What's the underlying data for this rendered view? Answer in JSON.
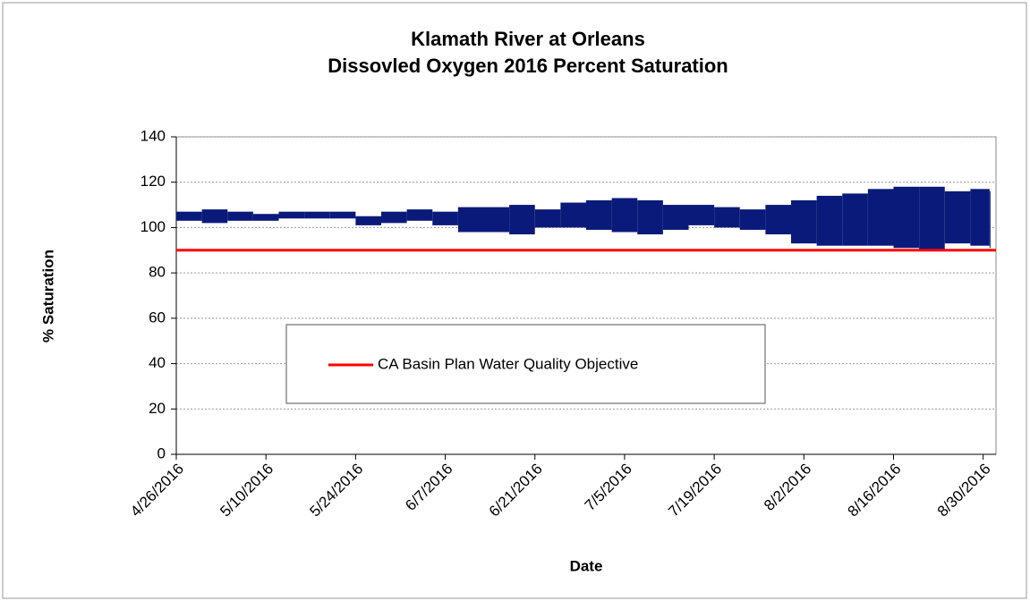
{
  "chart_data": {
    "type": "range",
    "title": [
      "Klamath River at Orleans",
      "Dissovled Oxygen   2016 Percent Saturation"
    ],
    "y_label": "% Saturation",
    "x_label": "Date",
    "x": [
      "4/26/2016",
      "4/30/2016",
      "5/4/2016",
      "5/8/2016",
      "5/12/2016",
      "5/16/2016",
      "5/20/2016",
      "5/24/2016",
      "5/28/2016",
      "6/1/2016",
      "6/5/2016",
      "6/9/2016",
      "6/13/2016",
      "6/17/2016",
      "6/21/2016",
      "6/25/2016",
      "6/29/2016",
      "7/3/2016",
      "7/7/2016",
      "7/11/2016",
      "7/15/2016",
      "7/19/2016",
      "7/23/2016",
      "7/27/2016",
      "7/31/2016",
      "8/4/2016",
      "8/8/2016",
      "8/12/2016",
      "8/16/2016",
      "8/20/2016",
      "8/24/2016",
      "8/28/2016",
      "8/31/2016"
    ],
    "series": [
      {
        "color": "#0a1a7a",
        "low": [
          103,
          102,
          103,
          103,
          104,
          104,
          104,
          101,
          102,
          103,
          101,
          98,
          98,
          97,
          100,
          100,
          99,
          98,
          97,
          99,
          101,
          100,
          99,
          97,
          93,
          92,
          92,
          92,
          91,
          90,
          93,
          92,
          91
        ],
        "high": [
          107,
          108,
          107,
          106,
          107,
          107,
          107,
          105,
          107,
          108,
          107,
          109,
          109,
          110,
          108,
          111,
          112,
          113,
          112,
          110,
          110,
          109,
          108,
          110,
          112,
          114,
          115,
          117,
          118,
          118,
          116,
          117,
          116
        ]
      }
    ],
    "reference_line": {
      "name": "CA Basin Plan Water Quality Objective",
      "value": 90,
      "color": "#ff0000"
    },
    "xlim": [
      "4/26/2016",
      "9/1/2016"
    ],
    "xticks": [
      "4/26/2016",
      "5/10/2016",
      "5/24/2016",
      "6/7/2016",
      "6/21/2016",
      "7/5/2016",
      "7/19/2016",
      "8/2/2016",
      "8/16/2016",
      "8/30/2016"
    ],
    "ylim": [
      0,
      140
    ],
    "yticks": [
      0,
      20,
      40,
      60,
      80,
      100,
      120,
      140
    ],
    "grid": true
  }
}
